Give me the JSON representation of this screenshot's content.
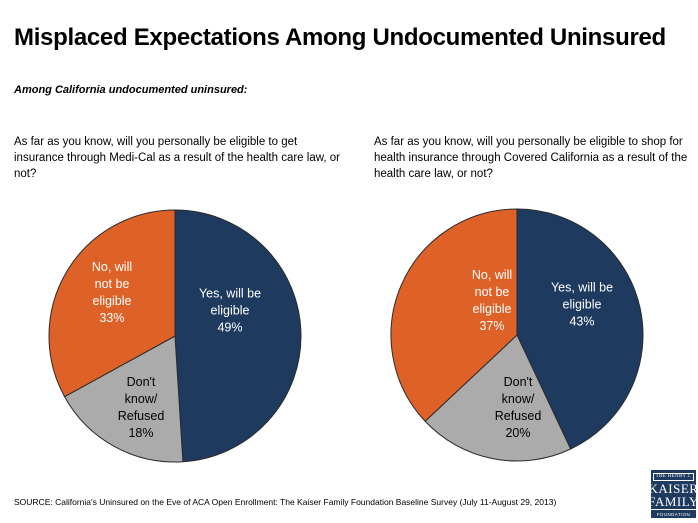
{
  "header": {
    "title": "Misplaced Expectations Among Undocumented Uninsured",
    "subtitle": "Among California undocumented uninsured:"
  },
  "footer": {
    "source": "SOURCE: California's Uninsured on the Eve of ACA Open Enrollment: The Kaiser Family Foundation Baseline Survey (July 11-August 29, 2013)"
  },
  "logo": {
    "line1": "THE HENRY J.",
    "line2": "KAISER",
    "line3": "FAMILY",
    "line4": "FOUNDATION",
    "bg_color": "#1F3A60",
    "text_color": "#FFFFFF"
  },
  "chart_data": [
    {
      "type": "pie",
      "question": "As far as you know, will you personally be eligible to get insurance through Medi-Cal as a result of the health care law, or not?",
      "start_angle_deg": 0,
      "direction": "clockwise",
      "outline_color": "#2B2B2B",
      "slices": [
        {
          "name": "Yes, will be eligible",
          "label_lines": [
            "Yes, will be",
            "eligible"
          ],
          "value": 49,
          "display": "49%",
          "color": "#1E3A5E",
          "text_color": "#FFFFFF",
          "label_offset": [
            55,
            -25
          ]
        },
        {
          "name": "Don't know/Refused",
          "label_lines": [
            "Don't",
            "know/",
            "Refused"
          ],
          "value": 18,
          "display": "18%",
          "color": "#ABABAB",
          "text_color": "#000000",
          "label_offset": [
            -34,
            72
          ]
        },
        {
          "name": "No, will not be eligible",
          "label_lines": [
            "No, will",
            "not be",
            "eligible"
          ],
          "value": 33,
          "display": "33%",
          "color": "#DE6227",
          "text_color": "#FFFFFF",
          "label_offset": [
            -63,
            -43
          ]
        }
      ]
    },
    {
      "type": "pie",
      "question": "As far as you know, will you personally be eligible to shop for health insurance through Covered California as a result of the health care law, or not?",
      "start_angle_deg": 0,
      "direction": "clockwise",
      "outline_color": "#2B2B2B",
      "slices": [
        {
          "name": "Yes, will be eligible",
          "label_lines": [
            "Yes, will be",
            "eligible"
          ],
          "value": 43,
          "display": "43%",
          "color": "#1E3A5E",
          "text_color": "#FFFFFF",
          "label_offset": [
            65,
            -30
          ]
        },
        {
          "name": "Don't know/Refused",
          "label_lines": [
            "Don't",
            "know/",
            "Refused"
          ],
          "value": 20,
          "display": "20%",
          "color": "#ABABAB",
          "text_color": "#000000",
          "label_offset": [
            1,
            73
          ]
        },
        {
          "name": "No, will not be eligible",
          "label_lines": [
            "No, will",
            "not be",
            "eligible"
          ],
          "value": 37,
          "display": "37%",
          "color": "#DE6227",
          "text_color": "#FFFFFF",
          "label_offset": [
            -25,
            -34
          ]
        }
      ]
    }
  ]
}
